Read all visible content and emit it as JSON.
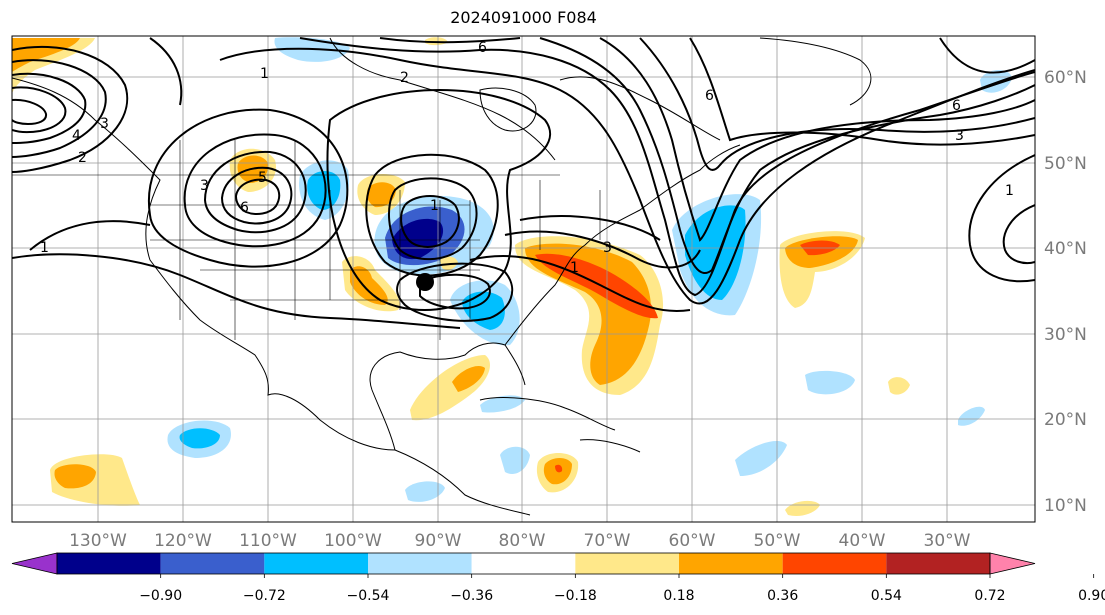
{
  "title": "2024091000 F084",
  "lon_labels": [
    "130°W",
    "120°W",
    "110°W",
    "100°W",
    "90°W",
    "80°W",
    "70°W",
    "60°W",
    "50°W",
    "40°W",
    "30°W"
  ],
  "lat_labels": [
    "60°N",
    "50°N",
    "40°N",
    "30°N",
    "20°N",
    "10°N"
  ],
  "colorbar": {
    "ticks": [
      "−0.90",
      "−0.72",
      "−0.54",
      "−0.36",
      "−0.18",
      "0.18",
      "0.36",
      "0.54",
      "0.72",
      "0.90"
    ],
    "colors": [
      "#9932cc",
      "#00008b",
      "#3a5fcd",
      "#00bfff",
      "#b0e2ff",
      "#ffffff",
      "#ffe88a",
      "#ffa500",
      "#ff4500",
      "#b22222",
      "#ff82ab"
    ]
  },
  "contour_labels": [
    "1",
    "2",
    "3",
    "4",
    "5",
    "6"
  ],
  "marker": "storm-position-marker"
}
